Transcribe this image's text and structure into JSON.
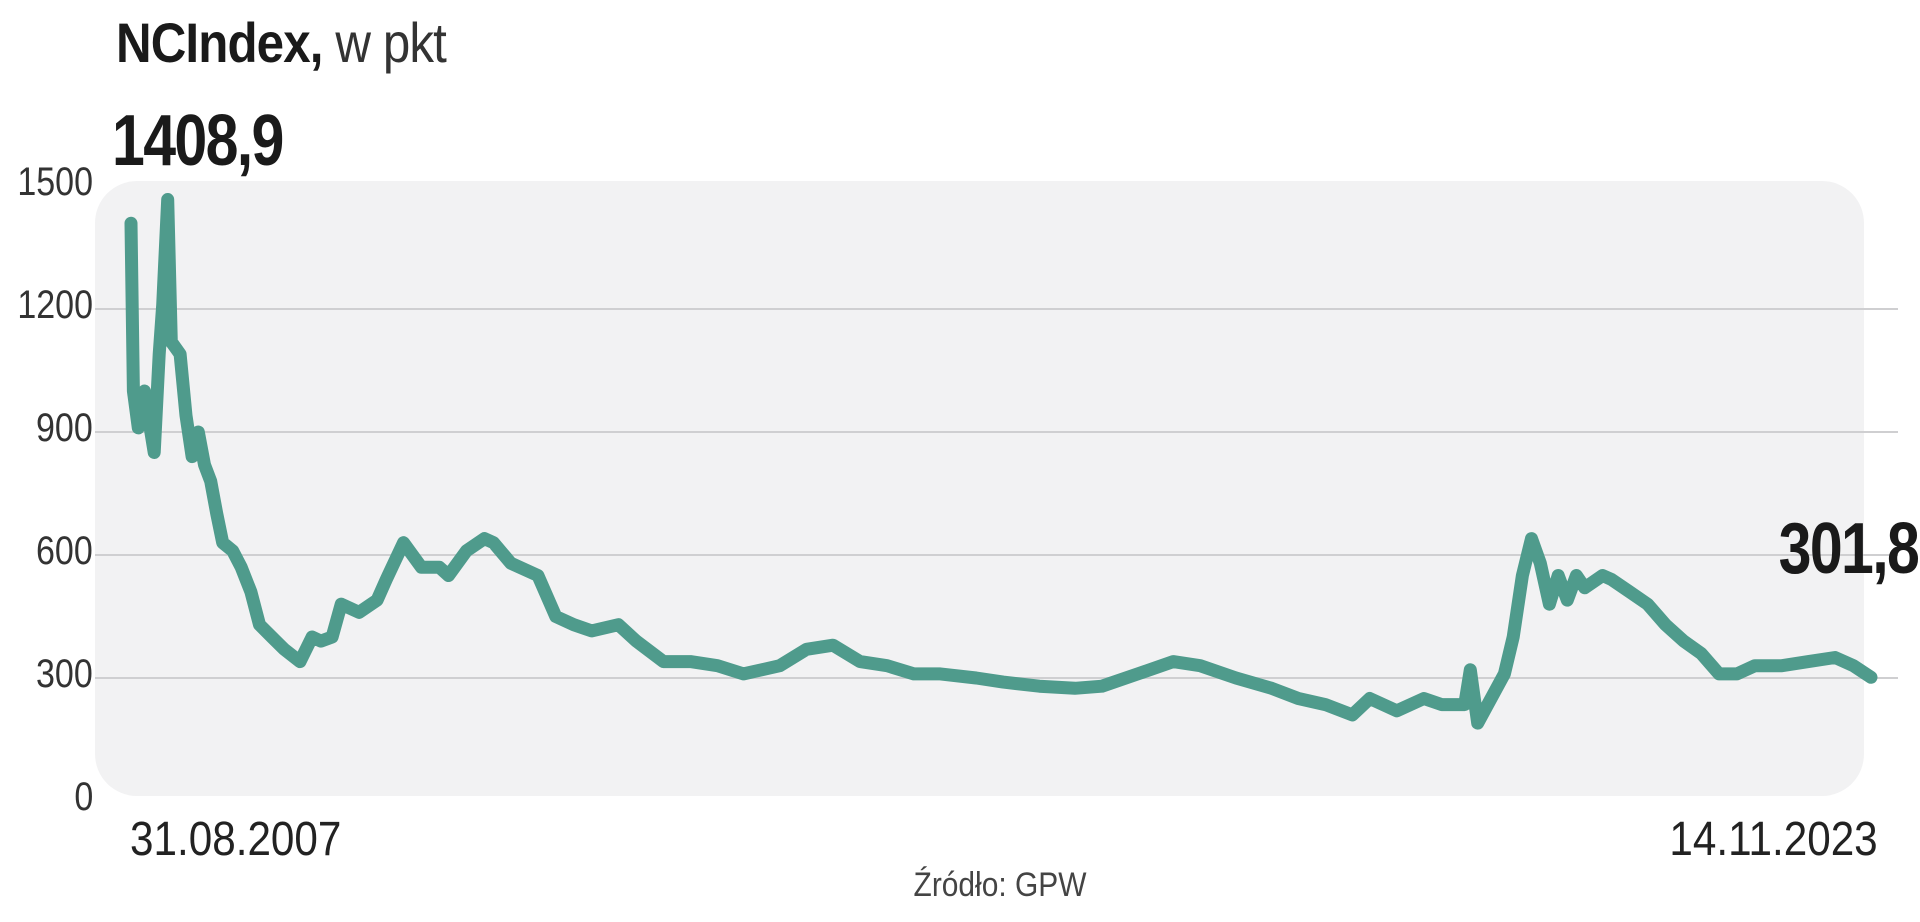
{
  "chart_data": {
    "type": "line",
    "title": "NCIndex,",
    "unit": "w pkt",
    "ylim": [
      0,
      1500
    ],
    "yticks": [
      "0",
      "300",
      "600",
      "900",
      "1200",
      "1500"
    ],
    "grid": true,
    "line_color": "#4f9b8c",
    "panel_color": "#f2f2f3",
    "start_label": "1408,9",
    "end_label": "301,8",
    "x_start_label": "31.08.2007",
    "x_end_label": "14.11.2023",
    "source": "Źródło: GPW",
    "x": [
      "2007-08-31",
      "2007-09-08",
      "2007-09-25",
      "2007-10-16",
      "2007-11-01",
      "2007-11-18",
      "2007-12-05",
      "2007-12-17",
      "2008-01-03",
      "2008-01-15",
      "2008-02-14",
      "2008-03-05",
      "2008-03-26",
      "2008-04-16",
      "2008-05-07",
      "2008-05-28",
      "2008-06-18",
      "2008-07-08",
      "2008-08-11",
      "2008-09-09",
      "2008-10-12",
      "2008-11-10",
      "2008-12-22",
      "2009-02-02",
      "2009-03-28",
      "2009-05-08",
      "2009-06-07",
      "2009-07-15",
      "2009-08-15",
      "2009-10-15",
      "2009-12-15",
      "2010-01-15",
      "2010-03-15",
      "2010-05-15",
      "2010-07-15",
      "2010-08-15",
      "2010-10-15",
      "2010-12-15",
      "2011-01-15",
      "2011-03-15",
      "2011-06-15",
      "2011-08-15",
      "2011-10-15",
      "2011-12-15",
      "2012-03-15",
      "2012-05-15",
      "2012-08-15",
      "2012-11-15",
      "2013-02-15",
      "2013-05-15",
      "2013-09-15",
      "2013-12-15",
      "2014-03-15",
      "2014-06-15",
      "2014-09-15",
      "2014-12-15",
      "2015-03-15",
      "2015-07-15",
      "2015-10-15",
      "2016-02-15",
      "2016-06-15",
      "2016-09-15",
      "2017-01-15",
      "2017-05-15",
      "2017-08-15",
      "2017-12-15",
      "2018-04-15",
      "2018-07-15",
      "2018-10-15",
      "2019-01-15",
      "2019-03-15",
      "2019-06-15",
      "2019-09-15",
      "2019-11-15",
      "2020-02-01",
      "2020-02-20",
      "2020-03-16",
      "2020-06-15",
      "2020-07-15",
      "2020-08-15",
      "2020-09-15",
      "2020-10-15",
      "2020-11-15",
      "2020-12-15",
      "2021-01-15",
      "2021-02-15",
      "2021-03-15",
      "2021-05-15",
      "2021-06-15",
      "2021-08-15",
      "2021-10-15",
      "2021-12-15",
      "2022-02-15",
      "2022-04-15",
      "2022-06-15",
      "2022-08-15",
      "2022-10-15",
      "2023-01-15",
      "2023-04-15",
      "2023-07-15",
      "2023-09-15",
      "2023-11-14"
    ],
    "values": [
      1409,
      1000,
      910,
      1000,
      925,
      850,
      1090,
      1210,
      1467,
      1120,
      1090,
      940,
      840,
      900,
      820,
      780,
      700,
      630,
      610,
      570,
      510,
      430,
      400,
      370,
      340,
      400,
      390,
      400,
      480,
      460,
      490,
      540,
      630,
      570,
      570,
      550,
      610,
      640,
      630,
      580,
      550,
      450,
      430,
      415,
      430,
      390,
      340,
      340,
      330,
      310,
      330,
      370,
      380,
      340,
      330,
      310,
      310,
      300,
      290,
      280,
      275,
      280,
      310,
      340,
      330,
      300,
      275,
      250,
      235,
      210,
      250,
      220,
      250,
      235,
      235,
      320,
      190,
      310,
      400,
      550,
      640,
      580,
      480,
      550,
      490,
      550,
      520,
      550,
      540,
      510,
      480,
      430,
      390,
      360,
      310,
      310,
      330,
      330,
      340,
      350,
      330,
      301.8
    ]
  }
}
